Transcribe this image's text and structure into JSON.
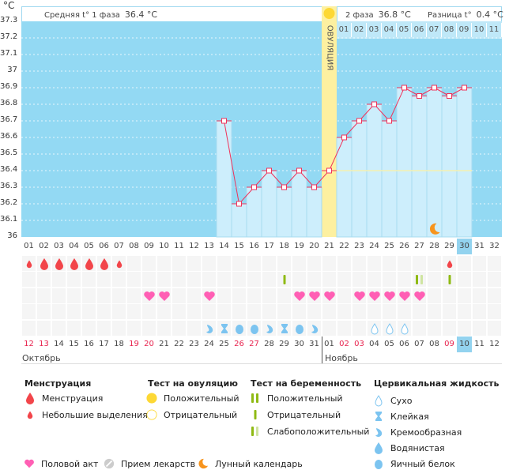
{
  "unit": "°C",
  "header": {
    "phase1_label": "Средняя t° 1 фаза",
    "phase1_value": "36.4 °C",
    "phase2_label": "2 фаза",
    "phase2_value": "36.8 °C",
    "diff_label": "Разница t°",
    "diff_value": "0.4 °C",
    "ovulation_label": "ОВУЛЯЦИЯ",
    "phase2_days": [
      "01",
      "02",
      "03",
      "04",
      "05",
      "06",
      "07",
      "08",
      "09",
      "10",
      "11"
    ]
  },
  "chart_data": {
    "type": "line",
    "ylim": [
      36,
      37.3
    ],
    "yticks": [
      "37.3",
      "37.2",
      "37.1",
      "37",
      "36.9",
      "36.8",
      "36.7",
      "36.6",
      "36.5",
      "36.4",
      "36.3",
      "36.2",
      "36.1",
      "36"
    ],
    "grid": true,
    "cycle_days": [
      "01",
      "02",
      "03",
      "04",
      "05",
      "06",
      "07",
      "08",
      "09",
      "10",
      "11",
      "12",
      "13",
      "14",
      "15",
      "16",
      "17",
      "18",
      "19",
      "20",
      "21",
      "22",
      "23",
      "24",
      "25",
      "26",
      "27",
      "28",
      "29",
      "30",
      "31",
      "32"
    ],
    "temps": [
      null,
      null,
      null,
      null,
      null,
      null,
      null,
      null,
      null,
      null,
      null,
      null,
      null,
      36.7,
      36.2,
      36.3,
      36.4,
      36.3,
      36.4,
      36.3,
      36.4,
      36.6,
      36.7,
      36.8,
      36.7,
      36.9,
      36.85,
      36.9,
      36.85,
      36.9
    ],
    "ovulation_day": 21,
    "today_day": 30,
    "coverline": 36.4,
    "moon_day": 28
  },
  "colors": {
    "chart_bg": "#93d9f3",
    "bar": "#cdeefc",
    "line": "#f0325a",
    "ovulation": "#fdf0a0",
    "menstruation": "#f2454a",
    "heart": "#ff5fb4",
    "test": "#8fba14",
    "test_weak": "#cfe4a0",
    "fluid": "#7cc4f0",
    "today": "#93d3ef",
    "weekend": "#e8244f"
  },
  "rows": {
    "menstruation": {
      "1": "small",
      "2": "large",
      "3": "large",
      "4": "large",
      "5": "large",
      "6": "large",
      "7": "small",
      "29": "small"
    },
    "pregnancy_test": {
      "18": "negative",
      "27": "weak",
      "29": "negative"
    },
    "intercourse": [
      9,
      10,
      13,
      19,
      20,
      21,
      23,
      24,
      25,
      26,
      27
    ],
    "medication": [],
    "cervical_fluid": {
      "13": "creamy",
      "14": "sticky",
      "15": "eggwhite",
      "16": "eggwhite",
      "17": "creamy",
      "18": "sticky",
      "19": "eggwhite",
      "20": "creamy",
      "24": "dry",
      "25": "dry",
      "26": "dry"
    }
  },
  "dates": [
    "12",
    "13",
    "14",
    "15",
    "16",
    "17",
    "18",
    "19",
    "20",
    "21",
    "22",
    "23",
    "24",
    "25",
    "26",
    "27",
    "28",
    "29",
    "30",
    "31",
    "01",
    "02",
    "03",
    "04",
    "05",
    "06",
    "07",
    "08",
    "09",
    "10",
    "11",
    "12"
  ],
  "weekend_days": [
    1,
    2,
    8,
    9,
    15,
    16,
    22,
    23,
    29
  ],
  "months": [
    "Октябрь",
    "Ноябрь"
  ],
  "legend": {
    "menstruation": {
      "title": "Менструация",
      "items": [
        "Менструация",
        "Небольшие выделения"
      ]
    },
    "ovulation_test": {
      "title": "Тест на овуляцию",
      "items": [
        "Положительный",
        "Отрицательный"
      ]
    },
    "pregnancy_test": {
      "title": "Тест на беременность",
      "items": [
        "Положительный",
        "Отрицательный",
        "Слабоположительный"
      ]
    },
    "cervical_fluid": {
      "title": "Цервикальная жидкость",
      "items": [
        "Сухо",
        "Клейкая",
        "Кремообразная",
        "Водянистая",
        "Яичный белок"
      ]
    },
    "other": [
      "Половой акт",
      "Прием лекарств",
      "Лунный календарь"
    ]
  }
}
